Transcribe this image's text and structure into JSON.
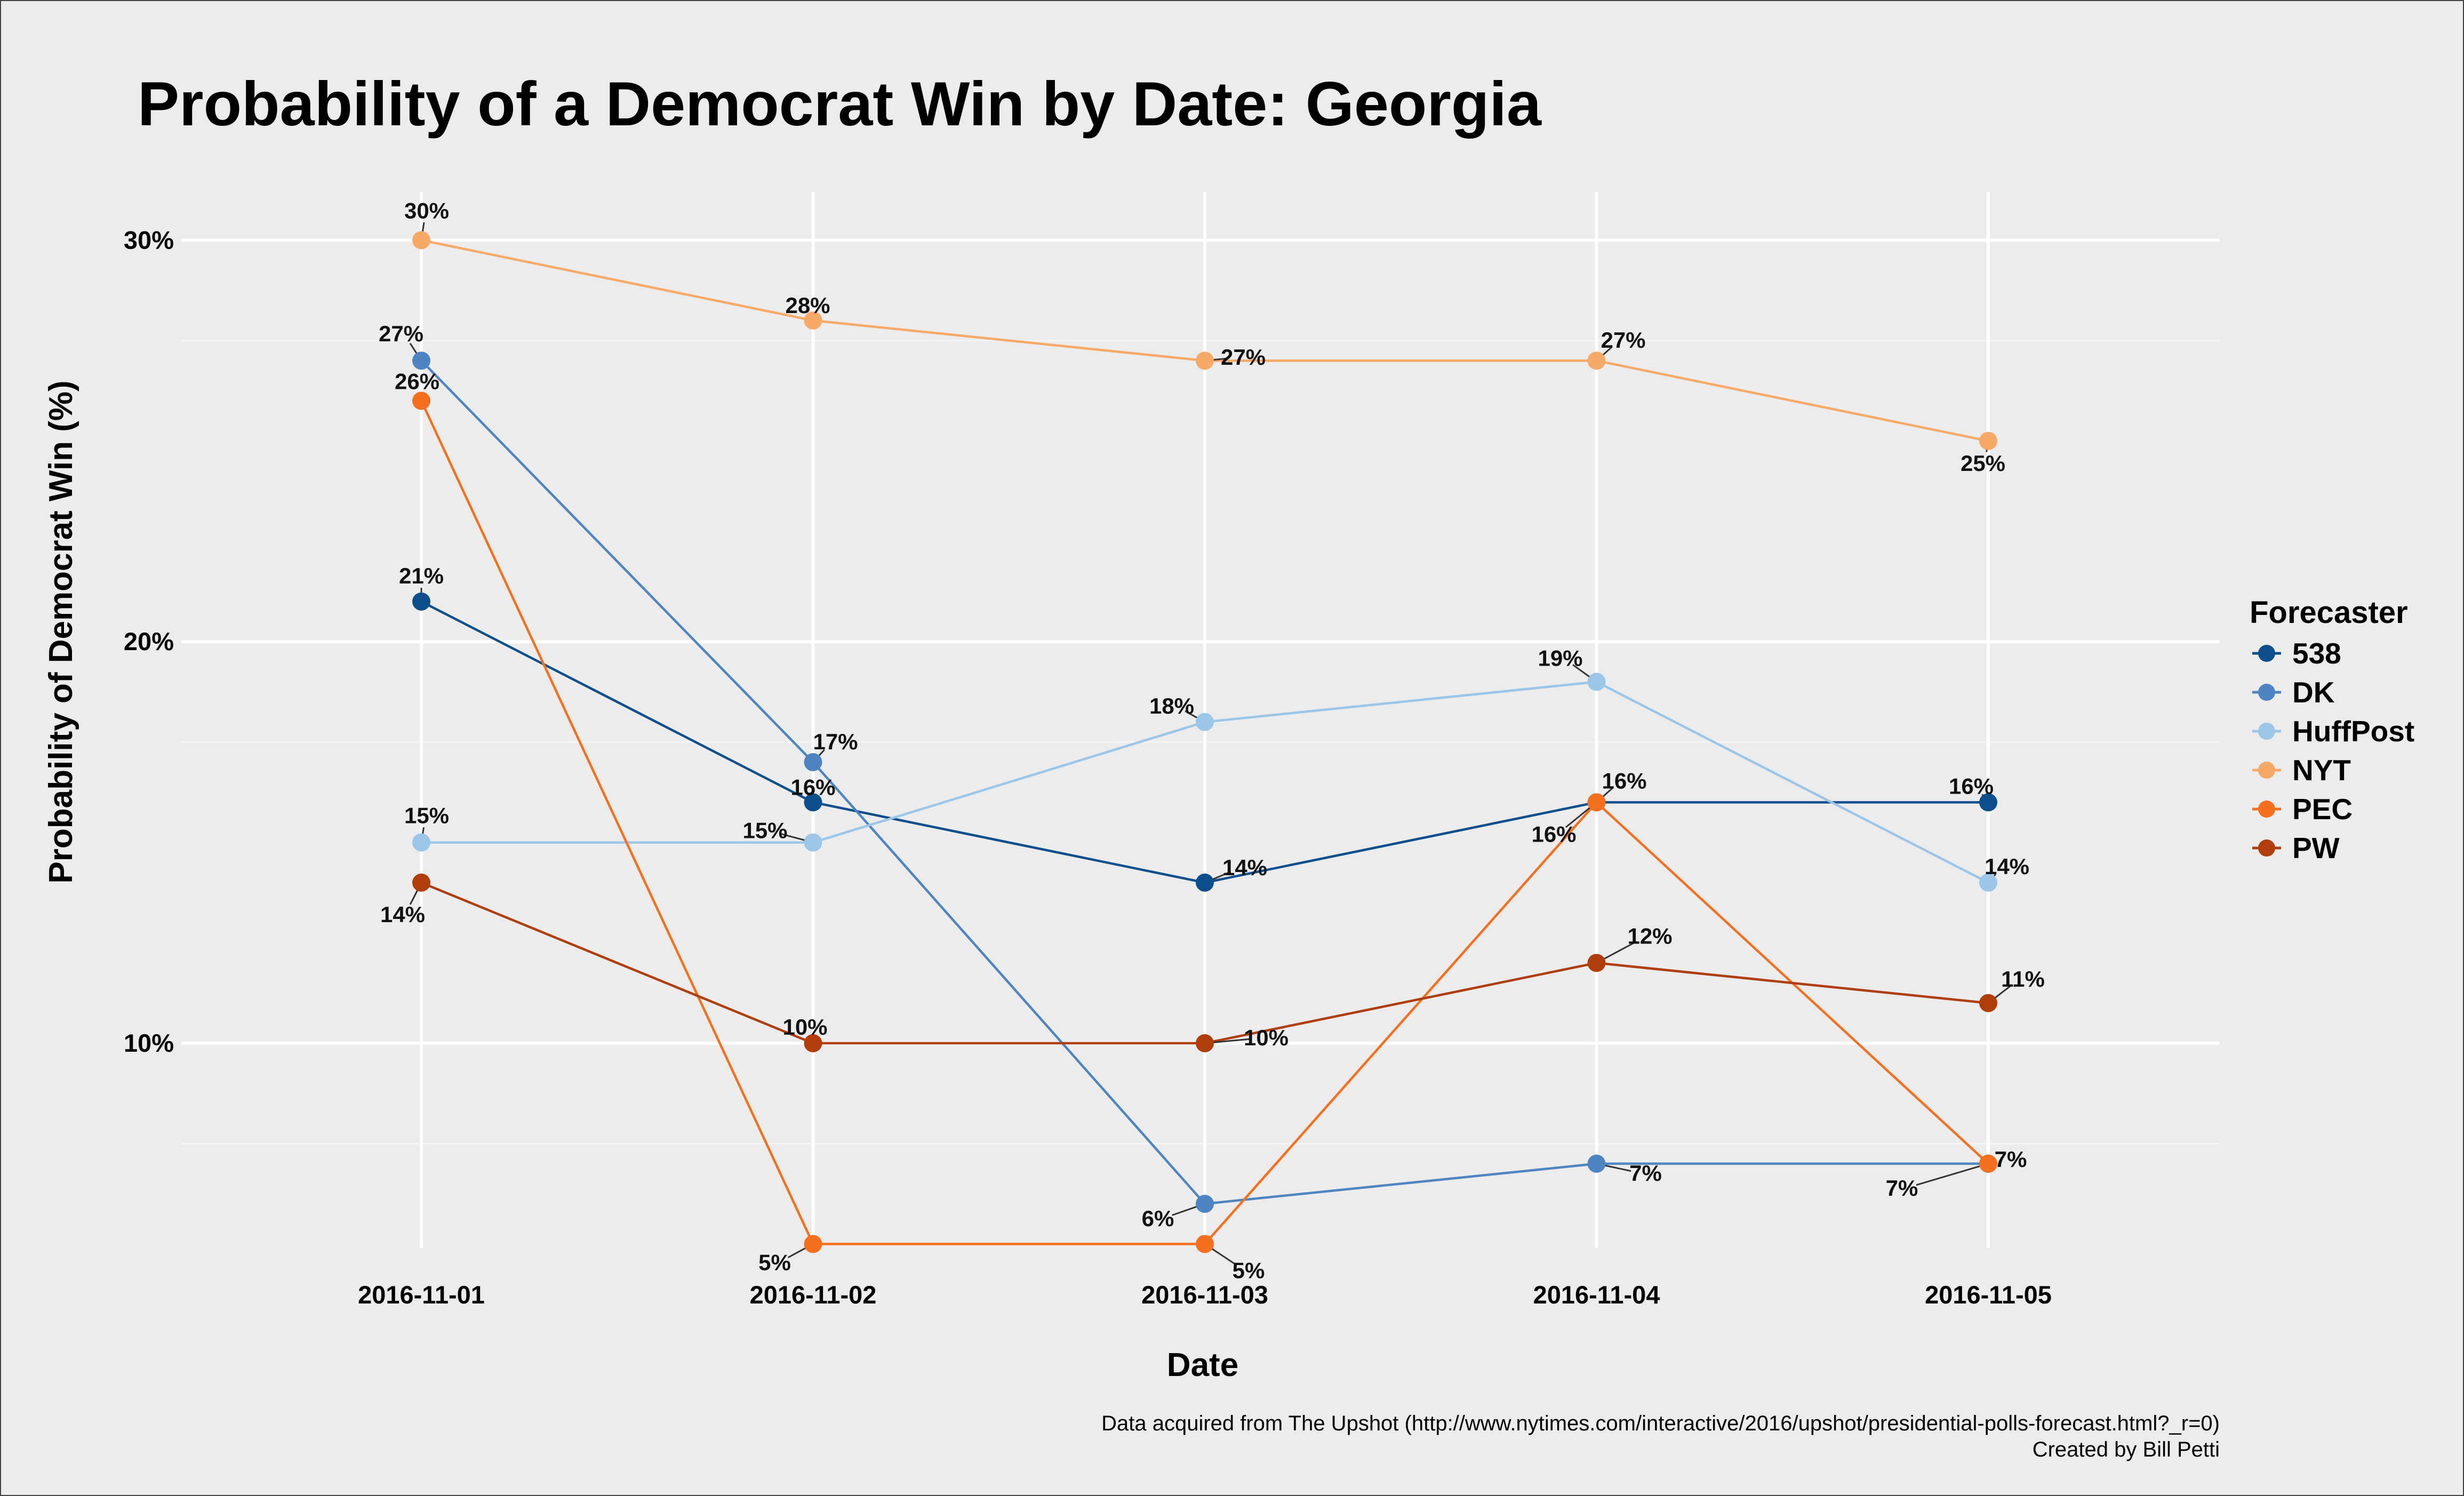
{
  "chart_data": {
    "type": "line",
    "title": "Probability of a Democrat Win by Date: Georgia",
    "xlabel": "Date",
    "ylabel": "Probability of Democrat Win (%)",
    "x": [
      "2016-11-01",
      "2016-11-02",
      "2016-11-03",
      "2016-11-04",
      "2016-11-05"
    ],
    "ylim": [
      4.9,
      31.2
    ],
    "yticks": [
      10,
      20,
      30
    ],
    "ytick_labels": [
      "10%",
      "20%",
      "30%"
    ],
    "grid": true,
    "legend": {
      "title": "Forecaster",
      "position": "right"
    },
    "series": [
      {
        "name": "538",
        "color": "#0d4f8c",
        "values": [
          21,
          16,
          14,
          16,
          16
        ],
        "labels": [
          "21%",
          "16%",
          "14%",
          "16%",
          "16%"
        ]
      },
      {
        "name": "DK",
        "color": "#4d84c1",
        "values": [
          27,
          17,
          6,
          7,
          7
        ],
        "labels": [
          "27%",
          "17%",
          "6%",
          "7%",
          "7%"
        ]
      },
      {
        "name": "HuffPost",
        "color": "#9bc6e8",
        "values": [
          15,
          15,
          18,
          19,
          14
        ],
        "labels": [
          "15%",
          "15%",
          "18%",
          "19%",
          "14%"
        ]
      },
      {
        "name": "NYT",
        "color": "#f7a967",
        "values": [
          30,
          28,
          27,
          27,
          25
        ],
        "labels": [
          "30%",
          "28%",
          "27%",
          "27%",
          "25%"
        ]
      },
      {
        "name": "PEC",
        "color": "#f46f1e",
        "values": [
          26,
          5,
          5,
          16,
          7
        ],
        "labels": [
          "26%",
          "5%",
          "5%",
          "16%",
          "7%"
        ]
      },
      {
        "name": "PW",
        "color": "#b03d0c",
        "values": [
          14,
          10,
          10,
          12,
          11
        ],
        "labels": [
          "14%",
          "10%",
          "10%",
          "12%",
          "11%"
        ]
      }
    ],
    "caption": [
      "Data acquired from The Upshot (http://www.nytimes.com/interactive/2016/upshot/presidential-polls-forecast.html?_r=0)",
      "Created by Bill Petti"
    ]
  }
}
